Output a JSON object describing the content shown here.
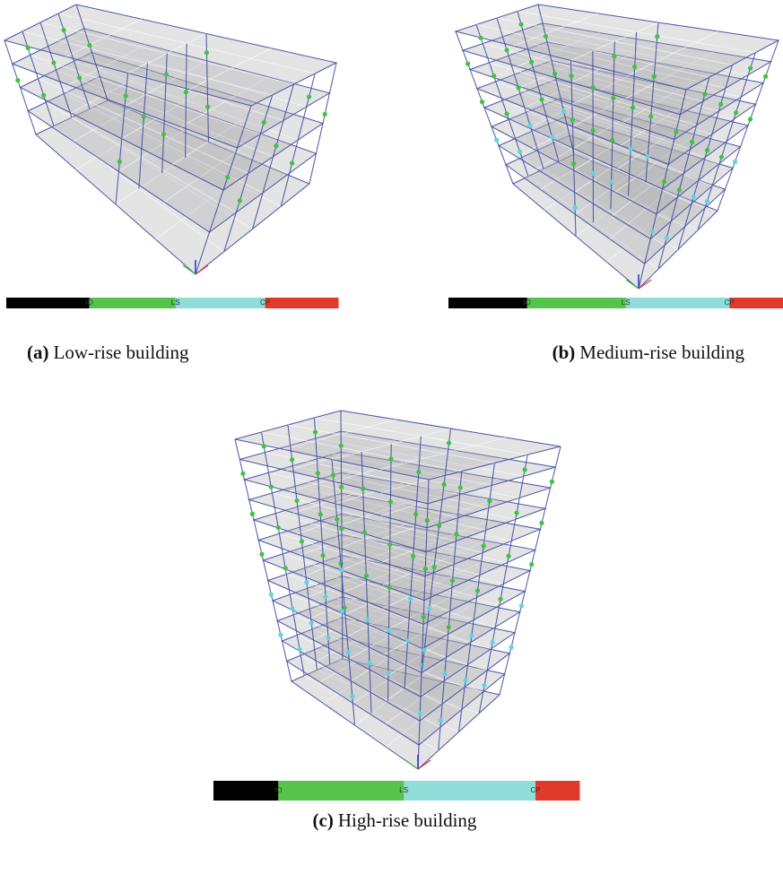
{
  "figures": [
    {
      "label": "(a)",
      "caption": "Low-rise building",
      "legend": [
        "IO",
        "LS",
        "CP"
      ]
    },
    {
      "label": "(b)",
      "caption": "Medium-rise building",
      "legend": [
        "IO",
        "LS",
        "CP"
      ]
    },
    {
      "label": "(c)",
      "caption": "High-rise building",
      "legend": [
        "IO",
        "LS",
        "CP"
      ]
    }
  ]
}
